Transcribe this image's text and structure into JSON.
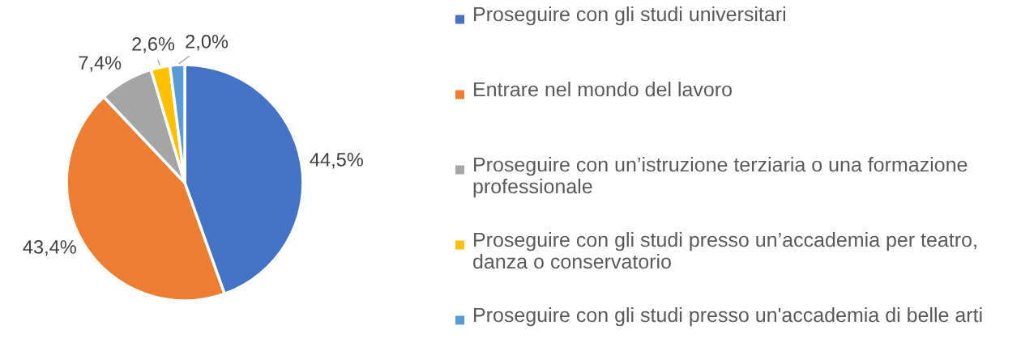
{
  "chart_data": {
    "type": "pie",
    "categories": [
      "Proseguire con gli studi universitari",
      "Entrare nel mondo del lavoro",
      "Proseguire con un’istruzione terziaria o una formazione professionale",
      "Proseguire con gli studi presso un’accademia per teatro, danza o conservatorio",
      "Proseguire con gli studi presso un'accademia di belle arti"
    ],
    "values": [
      44.5,
      43.4,
      7.4,
      2.6,
      2.0
    ],
    "colors": [
      "#4472c4",
      "#ed7d31",
      "#a5a5a5",
      "#ffc000",
      "#5b9bd5"
    ],
    "value_labels": [
      "44,5%",
      "43,4%",
      "7,4%",
      "2,6%",
      "2,0%"
    ],
    "legend": "right"
  }
}
